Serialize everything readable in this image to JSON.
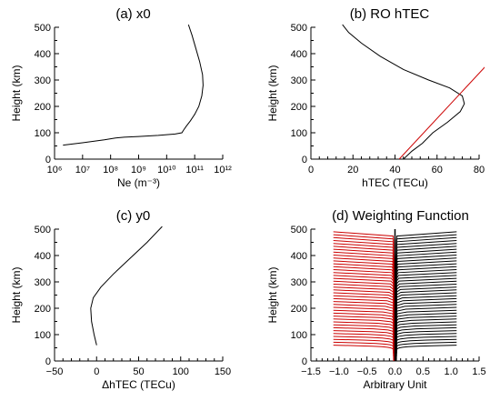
{
  "chart_data": [
    {
      "type": "line",
      "panel_label": "(a)",
      "title": "x0",
      "xlabel": "Ne (m⁻³)",
      "ylabel": "Height (km)",
      "xscale": "log",
      "xlim": [
        1000000.0,
        1000000000000.0
      ],
      "ylim": [
        0,
        500
      ],
      "x_tick_labels": [
        "10⁶",
        "10⁷",
        "10⁸",
        "10⁹",
        "10¹⁰",
        "10¹¹",
        "10¹²"
      ],
      "y_tick_labels": [
        "0",
        "100",
        "200",
        "300",
        "400",
        "500"
      ],
      "series": [
        {
          "color": "#000000",
          "points": [
            [
              2000000.0,
              53
            ],
            [
              10000000.0,
              62
            ],
            [
              60000000.0,
              73
            ],
            [
              150000000.0,
              80
            ],
            [
              300000000.0,
              83
            ],
            [
              1000000000.0,
              86
            ],
            [
              5000000000.0,
              90
            ],
            [
              20000000000.0,
              95
            ],
            [
              35000000000.0,
              100
            ],
            [
              40000000000.0,
              110
            ],
            [
              50000000000.0,
              125
            ],
            [
              70000000000.0,
              145
            ],
            [
              100000000000.0,
              170
            ],
            [
              140000000000.0,
              200
            ],
            [
              180000000000.0,
              240
            ],
            [
              200000000000.0,
              280
            ],
            [
              190000000000.0,
              320
            ],
            [
              150000000000.0,
              370
            ],
            [
              110000000000.0,
              420
            ],
            [
              80000000000.0,
              470
            ],
            [
              60000000000.0,
              510
            ]
          ]
        }
      ]
    },
    {
      "type": "line",
      "panel_label": "(b)",
      "title": "RO hTEC",
      "xlabel": "hTEC (TECu)",
      "ylabel": "Height (km)",
      "xlim": [
        0,
        80
      ],
      "ylim": [
        0,
        500
      ],
      "x_tick_labels": [
        "0",
        "20",
        "40",
        "60",
        "80"
      ],
      "y_tick_labels": [
        "0",
        "100",
        "200",
        "300",
        "400",
        "500"
      ],
      "series": [
        {
          "color": "#000000",
          "points": [
            [
              44,
              0
            ],
            [
              48,
              30
            ],
            [
              53,
              60
            ],
            [
              58,
              100
            ],
            [
              65,
              140
            ],
            [
              71,
              180
            ],
            [
              73,
              210
            ],
            [
              72,
              240
            ],
            [
              66,
              270
            ],
            [
              56,
              300
            ],
            [
              44,
              340
            ],
            [
              33,
              390
            ],
            [
              24,
              440
            ],
            [
              18,
              480
            ],
            [
              15,
              510
            ]
          ]
        },
        {
          "color": "#cc0000",
          "points": [
            [
              42,
              0
            ],
            [
              84,
              360
            ]
          ]
        }
      ]
    },
    {
      "type": "line",
      "panel_label": "(c)",
      "title": "y0",
      "xlabel": "ΔhTEC (TECu)",
      "ylabel": "Height (km)",
      "xlim": [
        -50,
        150
      ],
      "ylim": [
        0,
        500
      ],
      "x_tick_labels": [
        "−50",
        "0",
        "50",
        "100",
        "150"
      ],
      "y_tick_labels": [
        "0",
        "100",
        "200",
        "300",
        "400",
        "500"
      ],
      "series": [
        {
          "color": "#000000",
          "points": [
            [
              0,
              60
            ],
            [
              -3,
              100
            ],
            [
              -6,
              150
            ],
            [
              -7,
              200
            ],
            [
              -4,
              240
            ],
            [
              5,
              280
            ],
            [
              20,
              330
            ],
            [
              40,
              390
            ],
            [
              60,
              450
            ],
            [
              78,
              510
            ]
          ]
        }
      ]
    },
    {
      "type": "line",
      "panel_label": "(d)",
      "title": "Weighting Function",
      "xlabel": "Arbitrary Unit",
      "ylabel": "Height (km)",
      "xlim": [
        -1.5,
        1.5
      ],
      "ylim": [
        0,
        500
      ],
      "x_tick_labels": [
        "−1.5",
        "−1.0",
        "−0.5",
        "0.0",
        "0.5",
        "1.0",
        "1.5"
      ],
      "y_tick_labels": [
        "0",
        "100",
        "200",
        "300",
        "400",
        "500"
      ],
      "family": {
        "heights_from": 60,
        "heights_to": 490,
        "count": 40,
        "negative_color": "#cc0000",
        "positive_color": "#000000",
        "negative_amplitude": -1.1,
        "positive_amplitude": 1.1
      }
    }
  ]
}
